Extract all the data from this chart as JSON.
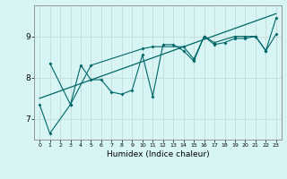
{
  "title": "",
  "xlabel": "Humidex (Indice chaleur)",
  "bg_color": "#d8f5f5",
  "grid_color": "#c8dada",
  "line_color": "#006666",
  "xlim": [
    -0.5,
    23.5
  ],
  "ylim": [
    6.5,
    9.75
  ],
  "yticks": [
    7,
    8,
    9
  ],
  "xticks": [
    0,
    1,
    2,
    3,
    4,
    5,
    6,
    7,
    8,
    9,
    10,
    11,
    12,
    13,
    14,
    15,
    16,
    17,
    18,
    19,
    20,
    21,
    22,
    23
  ],
  "series1_x": [
    0,
    1,
    3,
    4,
    5,
    6,
    7,
    8,
    9,
    10,
    11,
    12,
    13,
    14,
    15,
    16,
    17,
    18,
    19,
    20,
    21,
    22,
    23
  ],
  "series1_y": [
    7.35,
    6.65,
    7.35,
    8.3,
    7.95,
    7.95,
    7.65,
    7.6,
    7.7,
    8.55,
    7.55,
    8.8,
    8.8,
    8.65,
    8.4,
    9.0,
    8.8,
    8.85,
    8.95,
    8.95,
    9.0,
    8.65,
    9.05
  ],
  "series2_x": [
    1,
    3,
    5,
    10,
    11,
    14,
    15,
    16,
    17,
    19,
    20,
    21,
    22,
    23
  ],
  "series2_y": [
    8.35,
    7.35,
    8.3,
    8.7,
    8.75,
    8.75,
    8.45,
    9.0,
    8.85,
    9.0,
    9.0,
    9.0,
    8.65,
    9.45
  ],
  "trend_x": [
    0,
    23
  ],
  "trend_y": [
    7.5,
    9.55
  ]
}
